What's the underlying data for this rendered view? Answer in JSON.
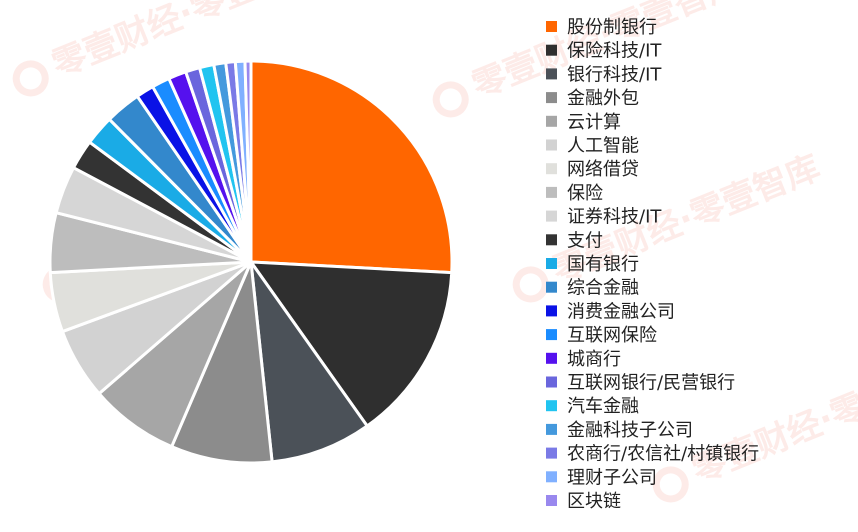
{
  "watermark_text": "零壹财经·零壹智库",
  "chart_data": {
    "type": "pie",
    "title": "",
    "legend_position": "right",
    "categories": [
      "股份制银行",
      "保险科技/IT",
      "银行科技/IT",
      "金融外包",
      "云计算",
      "人工智能",
      "网络借贷",
      "保险",
      "证券科技/IT",
      "支付",
      "国有银行",
      "综合金融",
      "消费金融公司",
      "互联网保险",
      "城商行",
      "互联网银行/民营银行",
      "汽车金融",
      "金融科技子公司",
      "农商行/农信社/村镇银行",
      "理财子公司",
      "区块链"
    ],
    "values": [
      27.0,
      15.0,
      8.5,
      8.5,
      7.5,
      6.0,
      5.0,
      5.0,
      4.0,
      2.5,
      2.5,
      3.0,
      1.5,
      1.5,
      1.5,
      1.2,
      1.2,
      1.0,
      0.8,
      0.8,
      0.5
    ],
    "colors": [
      "#ff6600",
      "#2f2f2f",
      "#4b5158",
      "#8c8c8c",
      "#a6a6a6",
      "#d2d2d2",
      "#e0e0dc",
      "#bdbdbd",
      "#d6d6d6",
      "#333333",
      "#1aabe6",
      "#3388cc",
      "#0a12e6",
      "#1a8cff",
      "#5511ee",
      "#6a66dd",
      "#21c4f0",
      "#4499dd",
      "#7a7ae6",
      "#80b0ff",
      "#9988ee"
    ]
  }
}
